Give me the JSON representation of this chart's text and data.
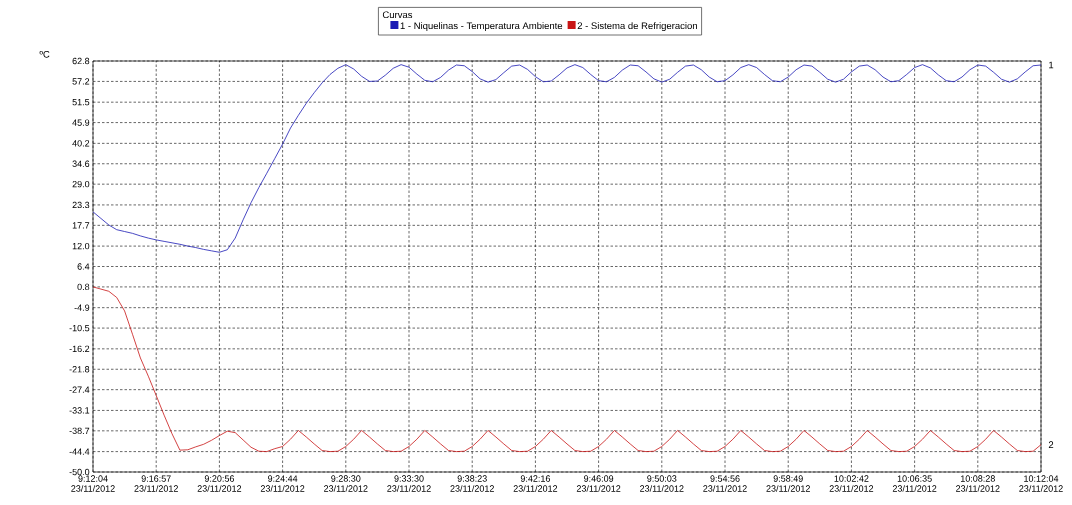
{
  "chart_data": {
    "type": "line",
    "ylabel": "ºC",
    "legend_title": "Curvas",
    "legend": "top",
    "grid": true,
    "marker": "none",
    "line_style": "solid",
    "ylim": [
      -50.0,
      62.8
    ],
    "categories": [
      "9:12:04 23/11/2012",
      null,
      null,
      null,
      null,
      null,
      null,
      null,
      "9:16:57 23/11/2012",
      null,
      null,
      null,
      null,
      null,
      null,
      null,
      "9:20:56 23/11/2012",
      null,
      null,
      null,
      null,
      null,
      null,
      null,
      "9:24:44 23/11/2012",
      null,
      null,
      null,
      null,
      null,
      null,
      null,
      "9:28:30 23/11/2012",
      null,
      null,
      null,
      null,
      null,
      null,
      null,
      "9:33:30 23/11/2012",
      null,
      null,
      null,
      null,
      null,
      null,
      null,
      "9:38:23 23/11/2012",
      null,
      null,
      null,
      null,
      null,
      null,
      null,
      "9:42:16 23/11/2012",
      null,
      null,
      null,
      null,
      null,
      null,
      null,
      "9:46:09 23/11/2012",
      null,
      null,
      null,
      null,
      null,
      null,
      null,
      "9:50:03 23/11/2012",
      null,
      null,
      null,
      null,
      null,
      null,
      null,
      "9:54:56 23/11/2012",
      null,
      null,
      null,
      null,
      null,
      null,
      null,
      "9:58:49 23/11/2012",
      null,
      null,
      null,
      null,
      null,
      null,
      null,
      "10:02:42 23/11/2012",
      null,
      null,
      null,
      null,
      null,
      null,
      null,
      "10:06:35 23/11/2012",
      null,
      null,
      null,
      null,
      null,
      null,
      null,
      "10:08:28 23/11/2012",
      null,
      null,
      null,
      null,
      null,
      null,
      null,
      "10:12:04 23/11/2012"
    ],
    "yticks": [
      62.8,
      57.2,
      51.5,
      45.9,
      40.2,
      34.6,
      {
        "value": 29.0,
        "label": "29.0"
      },
      23.3,
      17.7,
      {
        "value": 12.0,
        "label": "12.0"
      },
      6.4,
      0.8,
      -4.9,
      -10.5,
      -16.2,
      -21.8,
      -27.4,
      -33.1,
      -38.7,
      -44.4,
      {
        "value": -50.0,
        "label": "-50.0"
      }
    ],
    "annotations": [
      "1",
      "2"
    ],
    "series": [
      {
        "name": "1 - Niquelinas - Temperatura Ambiente",
        "color": "#1a1ab4",
        "values": [
          21.4,
          19.6,
          17.8,
          16.5,
          16.0,
          15.5,
          14.8,
          14.2,
          13.7,
          13.3,
          12.9,
          12.5,
          12.0,
          11.6,
          11.1,
          10.7,
          10.3,
          11.0,
          14.2,
          19.2,
          23.9,
          28.1,
          32.0,
          36.0,
          40.0,
          44.4,
          47.9,
          51.2,
          54.1,
          56.8,
          59.1,
          60.8,
          61.8,
          60.6,
          58.6,
          57.2,
          57.3,
          58.9,
          60.8,
          61.8,
          61.1,
          59.2,
          57.5,
          57.1,
          58.3,
          60.3,
          61.7,
          61.5,
          59.9,
          57.9,
          57.0,
          57.7,
          59.6,
          61.4,
          61.7,
          60.5,
          58.5,
          57.1,
          57.3,
          59.0,
          60.9,
          61.8,
          61.0,
          59.1,
          57.4,
          57.1,
          58.3,
          60.3,
          61.7,
          61.5,
          59.8,
          57.9,
          57.0,
          57.8,
          59.7,
          61.4,
          61.7,
          60.4,
          58.4,
          57.1,
          57.4,
          59.0,
          61.0,
          61.8,
          61.0,
          59.1,
          57.4,
          57.1,
          58.4,
          60.4,
          61.7,
          61.4,
          59.7,
          57.8,
          57.0,
          57.8,
          59.8,
          61.4,
          61.7,
          60.4,
          58.4,
          57.1,
          57.4,
          59.1,
          61.0,
          61.8,
          60.9,
          59.0,
          57.4,
          57.1,
          58.4,
          60.4,
          61.7,
          61.4,
          59.7,
          57.8,
          57.0,
          57.9,
          59.8,
          61.5,
          61.7
        ]
      },
      {
        "name": "2 - Sistema de Refrigeracion",
        "color": "#c81414",
        "values": [
          0.8,
          0.2,
          -0.4,
          -2.1,
          -5.8,
          -12.2,
          -18.7,
          -23.7,
          -29.0,
          -34.4,
          -39.5,
          -44.0,
          -43.9,
          -43.1,
          -42.4,
          -41.3,
          -40.0,
          -38.8,
          -39.2,
          -41.2,
          -43.2,
          -44.3,
          -44.4,
          -43.6,
          -43.0,
          -41.0,
          -38.6,
          -40.4,
          -42.3,
          -44.1,
          -44.4,
          -44.3,
          -43.0,
          -41.0,
          -38.6,
          -40.4,
          -42.3,
          -44.1,
          -44.4,
          -44.3,
          -43.0,
          -41.0,
          -38.6,
          -40.4,
          -42.3,
          -44.1,
          -44.4,
          -44.3,
          -43.0,
          -41.0,
          -38.6,
          -40.4,
          -42.3,
          -44.1,
          -44.4,
          -44.3,
          -43.0,
          -41.0,
          -38.6,
          -40.4,
          -42.3,
          -44.1,
          -44.4,
          -44.3,
          -43.0,
          -41.0,
          -38.6,
          -40.4,
          -42.3,
          -44.1,
          -44.4,
          -44.3,
          -43.0,
          -41.0,
          -38.6,
          -40.4,
          -42.3,
          -44.1,
          -44.4,
          -44.3,
          -43.0,
          -41.0,
          -38.6,
          -40.4,
          -42.3,
          -44.1,
          -44.4,
          -44.3,
          -43.0,
          -41.0,
          -38.6,
          -40.4,
          -42.3,
          -44.1,
          -44.4,
          -44.3,
          -43.0,
          -41.0,
          -38.6,
          -40.4,
          -42.3,
          -44.1,
          -44.4,
          -44.3,
          -43.0,
          -41.0,
          -38.6,
          -40.4,
          -42.3,
          -44.1,
          -44.4,
          -44.3,
          -43.0,
          -41.0,
          -38.6,
          -40.4,
          -42.3,
          -44.1,
          -44.4,
          -44.3,
          -42.5
        ]
      }
    ]
  }
}
